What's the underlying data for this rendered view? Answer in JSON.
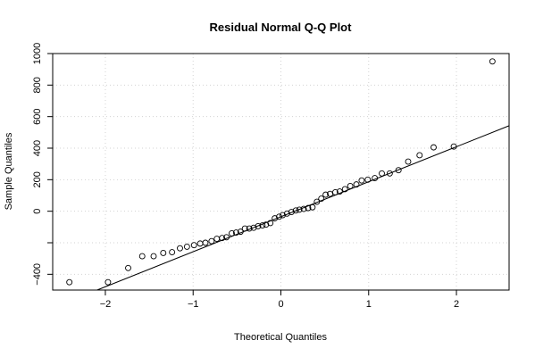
{
  "chart_data": {
    "type": "scatter",
    "title": "Residual Normal Q-Q Plot",
    "xlabel": "Theoretical Quantiles",
    "ylabel": "Sample Quantiles",
    "xlim": [
      -2.6,
      2.6
    ],
    "ylim": [
      -500,
      1000
    ],
    "x_ticks": [
      -2,
      -1,
      0,
      1,
      2
    ],
    "x_tick_labels": [
      "−2",
      "−1",
      "0",
      "1",
      "2"
    ],
    "y_ticks": [
      -400,
      -200,
      0,
      200,
      400,
      600,
      800,
      1000
    ],
    "y_tick_labels": [
      "−400",
      "",
      "0",
      "200",
      "400",
      "600",
      "800",
      "1000"
    ],
    "grid": true,
    "point_marker": "open-circle",
    "reference_line": {
      "slope": 222,
      "intercept": -35
    },
    "points": [
      {
        "x": -2.41,
        "y": -450
      },
      {
        "x": -1.97,
        "y": -450
      },
      {
        "x": -1.74,
        "y": -360
      },
      {
        "x": -1.58,
        "y": -285
      },
      {
        "x": -1.45,
        "y": -285
      },
      {
        "x": -1.34,
        "y": -265
      },
      {
        "x": -1.24,
        "y": -260
      },
      {
        "x": -1.15,
        "y": -235
      },
      {
        "x": -1.07,
        "y": -225
      },
      {
        "x": -0.99,
        "y": -215
      },
      {
        "x": -0.92,
        "y": -205
      },
      {
        "x": -0.86,
        "y": -200
      },
      {
        "x": -0.79,
        "y": -190
      },
      {
        "x": -0.73,
        "y": -175
      },
      {
        "x": -0.67,
        "y": -170
      },
      {
        "x": -0.62,
        "y": -165
      },
      {
        "x": -0.56,
        "y": -140
      },
      {
        "x": -0.51,
        "y": -135
      },
      {
        "x": -0.46,
        "y": -130
      },
      {
        "x": -0.41,
        "y": -110
      },
      {
        "x": -0.36,
        "y": -110
      },
      {
        "x": -0.31,
        "y": -105
      },
      {
        "x": -0.26,
        "y": -95
      },
      {
        "x": -0.21,
        "y": -90
      },
      {
        "x": -0.17,
        "y": -85
      },
      {
        "x": -0.12,
        "y": -75
      },
      {
        "x": -0.07,
        "y": -45
      },
      {
        "x": -0.02,
        "y": -35
      },
      {
        "x": 0.02,
        "y": -25
      },
      {
        "x": 0.07,
        "y": -15
      },
      {
        "x": 0.12,
        "y": -5
      },
      {
        "x": 0.17,
        "y": 5
      },
      {
        "x": 0.21,
        "y": 10
      },
      {
        "x": 0.26,
        "y": 15
      },
      {
        "x": 0.31,
        "y": 20
      },
      {
        "x": 0.36,
        "y": 25
      },
      {
        "x": 0.41,
        "y": 60
      },
      {
        "x": 0.46,
        "y": 80
      },
      {
        "x": 0.51,
        "y": 105
      },
      {
        "x": 0.56,
        "y": 110
      },
      {
        "x": 0.62,
        "y": 120
      },
      {
        "x": 0.67,
        "y": 125
      },
      {
        "x": 0.73,
        "y": 140
      },
      {
        "x": 0.79,
        "y": 160
      },
      {
        "x": 0.86,
        "y": 170
      },
      {
        "x": 0.92,
        "y": 195
      },
      {
        "x": 0.99,
        "y": 200
      },
      {
        "x": 1.07,
        "y": 210
      },
      {
        "x": 1.15,
        "y": 240
      },
      {
        "x": 1.24,
        "y": 240
      },
      {
        "x": 1.34,
        "y": 260
      },
      {
        "x": 1.45,
        "y": 315
      },
      {
        "x": 1.58,
        "y": 355
      },
      {
        "x": 1.74,
        "y": 405
      },
      {
        "x": 1.97,
        "y": 410
      },
      {
        "x": 2.41,
        "y": 950
      }
    ]
  },
  "colors": {
    "background": "#ffffff",
    "foreground": "#000000",
    "grid": "#d3d3d3"
  }
}
